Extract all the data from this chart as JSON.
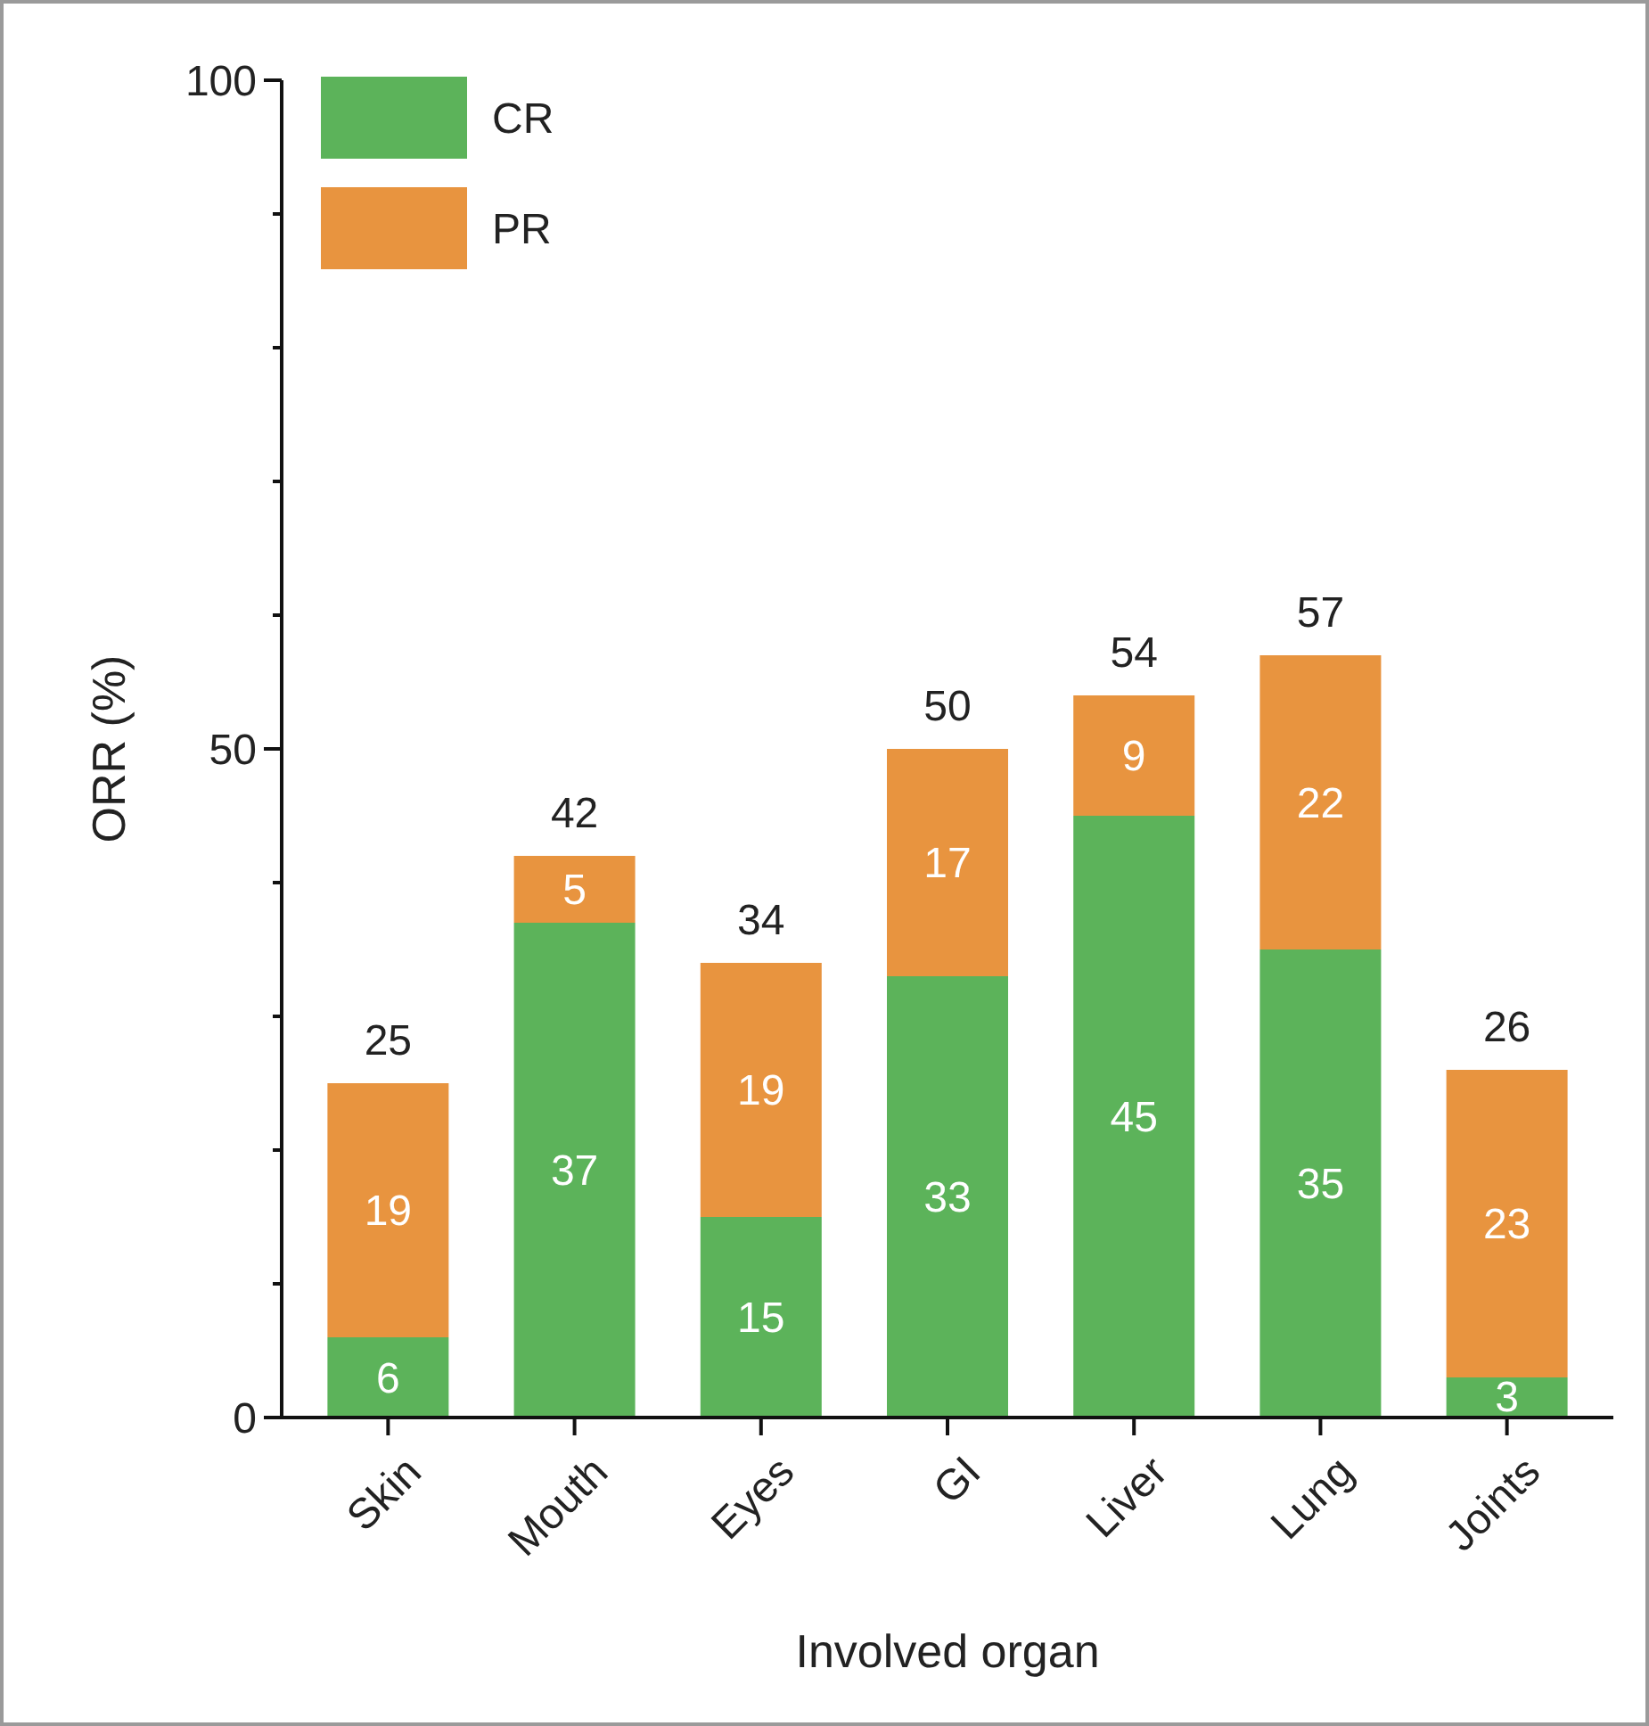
{
  "chart_data": {
    "type": "bar",
    "stacked": true,
    "xlabel": "Involved organ",
    "ylabel": "ORR (%)",
    "categories": [
      "Skin",
      "Mouth",
      "Eyes",
      "GI",
      "Liver",
      "Lung",
      "Joints"
    ],
    "series": [
      {
        "name": "CR",
        "color": "#5cb35a",
        "values": [
          6,
          37,
          15,
          33,
          45,
          35,
          3
        ]
      },
      {
        "name": "PR",
        "color": "#e8943f",
        "values": [
          19,
          5,
          19,
          17,
          9,
          22,
          23
        ]
      }
    ],
    "ylim": [
      0,
      100
    ],
    "yticks": [
      0,
      {
        "value": 10,
        "label": null
      },
      {
        "value": 20,
        "label": null
      },
      {
        "value": 30,
        "label": null
      },
      {
        "value": 40,
        "label": null
      },
      50,
      {
        "value": 60,
        "label": null
      },
      {
        "value": 70,
        "label": null
      },
      {
        "value": 80,
        "label": null
      },
      {
        "value": 90,
        "label": null
      },
      100
    ],
    "data_labels": true,
    "totals": [
      "25",
      "42",
      "34",
      "50",
      "54",
      "57",
      "26"
    ],
    "legend": "top left",
    "grid": false
  }
}
